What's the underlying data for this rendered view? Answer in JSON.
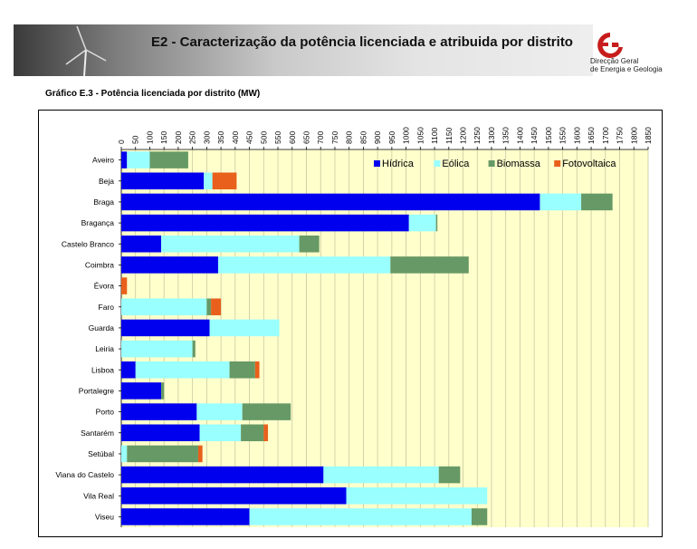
{
  "header": {
    "title": "E2 - Caracterização da potência licenciada e atribuida  por distrito",
    "logo_line1": "Direcção Geral",
    "logo_line2": "de Energia e Geologia"
  },
  "chart_caption": "Gráfico E.3 - Potência licenciada por distrito (MW)",
  "chart_data": {
    "type": "bar",
    "orientation": "horizontal",
    "stacked": true,
    "categories": [
      "Aveiro",
      "Beja",
      "Braga",
      "Bragança",
      "Castelo Branco",
      "Coimbra",
      "Évora",
      "Faro",
      "Guarda",
      "Leiria",
      "Lisboa",
      "Portalegre",
      "Porto",
      "Santarém",
      "Setúbal",
      "Viana do Castelo",
      "Vila Real",
      "Viseu"
    ],
    "series": [
      {
        "name": "Hídrica",
        "color": "#0000ee",
        "values": [
          20,
          290,
          1470,
          1010,
          140,
          340,
          0,
          0,
          310,
          0,
          50,
          140,
          265,
          275,
          0,
          710,
          790,
          450
        ]
      },
      {
        "name": "Eólica",
        "color": "#99ffff",
        "values": [
          80,
          30,
          145,
          95,
          485,
          605,
          0,
          300,
          245,
          250,
          330,
          0,
          160,
          145,
          20,
          405,
          495,
          780
        ]
      },
      {
        "name": "Biomassa",
        "color": "#669966",
        "values": [
          135,
          0,
          110,
          5,
          70,
          275,
          0,
          15,
          0,
          10,
          90,
          10,
          170,
          80,
          250,
          75,
          0,
          55
        ]
      },
      {
        "name": "Fotovoltaica",
        "color": "#e8601c",
        "values": [
          0,
          85,
          0,
          0,
          0,
          0,
          20,
          35,
          0,
          0,
          15,
          0,
          0,
          15,
          15,
          0,
          0,
          0
        ]
      }
    ],
    "xlim": [
      0,
      1850
    ],
    "xticks": [
      0,
      50,
      100,
      150,
      200,
      250,
      300,
      350,
      400,
      450,
      500,
      550,
      600,
      650,
      700,
      750,
      800,
      850,
      900,
      950,
      1000,
      1050,
      1100,
      1150,
      1200,
      1250,
      1300,
      1350,
      1400,
      1450,
      1500,
      1550,
      1600,
      1650,
      1700,
      1750,
      1800,
      1850
    ],
    "legend_position": "top-right",
    "grid": true,
    "plot_background": "#ffffcc"
  }
}
